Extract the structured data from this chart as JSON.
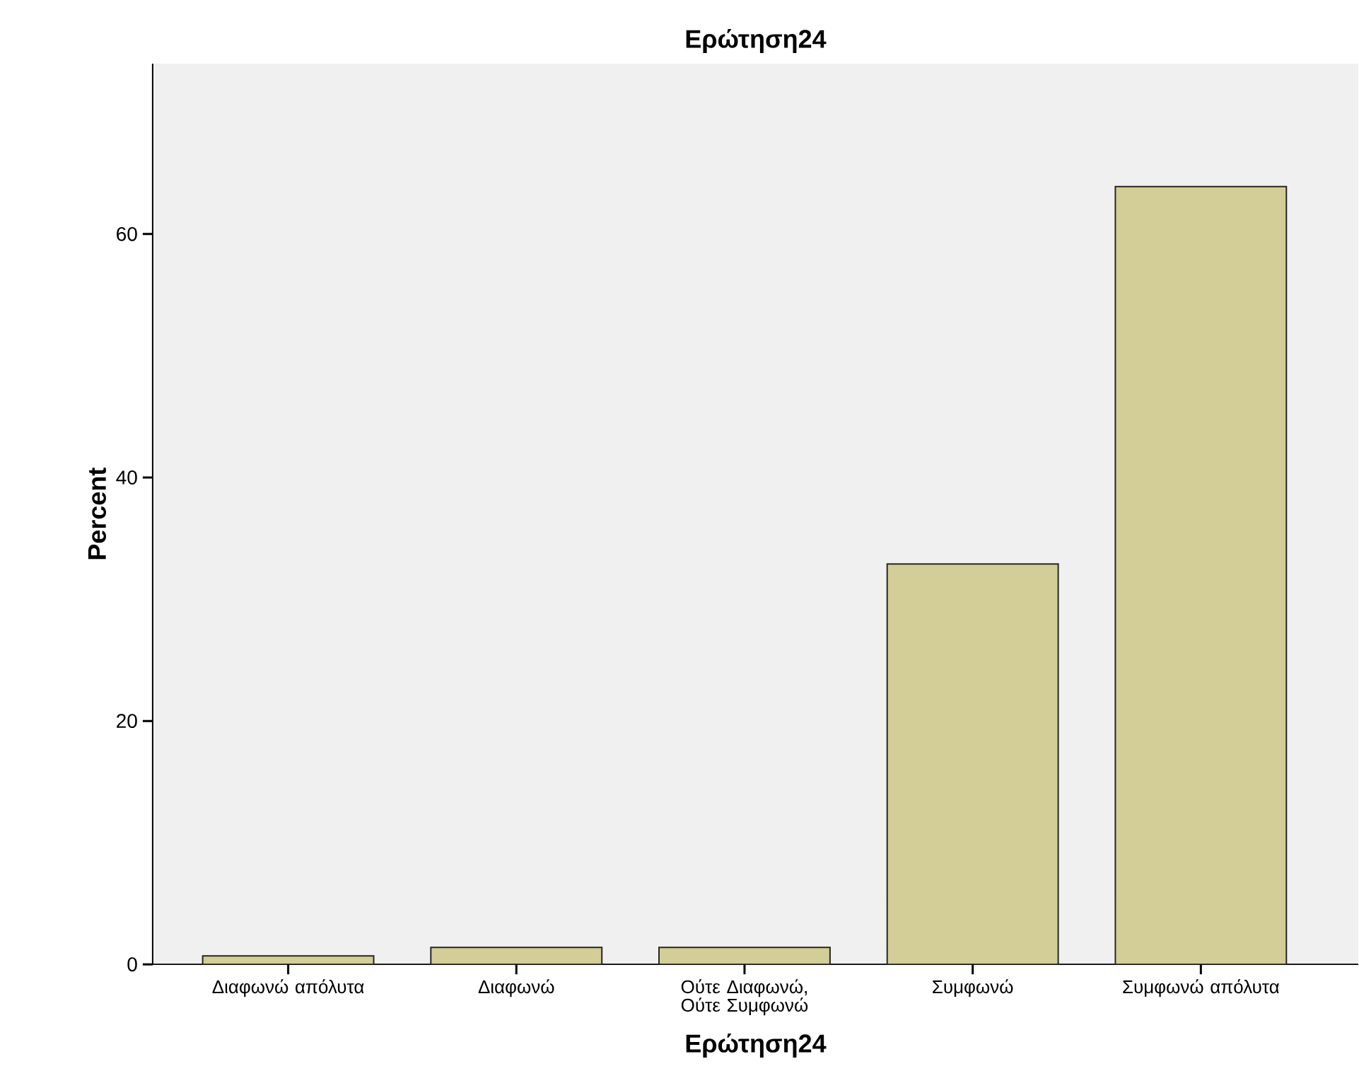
{
  "chart_data": {
    "type": "bar",
    "title": "Ερώτηση24",
    "xlabel": "Ερώτηση24",
    "ylabel": "Percent",
    "categories": [
      "Διαφωνώ απόλυτα",
      "Διαφωνώ",
      "Ούτε Διαφωνώ, Ούτε Συμφωνώ",
      "Συμφωνώ",
      "Συμφωνώ απόλυτα"
    ],
    "values": [
      0.7,
      1.4,
      1.4,
      32.9,
      63.9
    ],
    "color": "#d3ce97",
    "ylim": [
      0,
      74
    ],
    "yticks": [
      0,
      20,
      40,
      60
    ],
    "grid": false
  }
}
